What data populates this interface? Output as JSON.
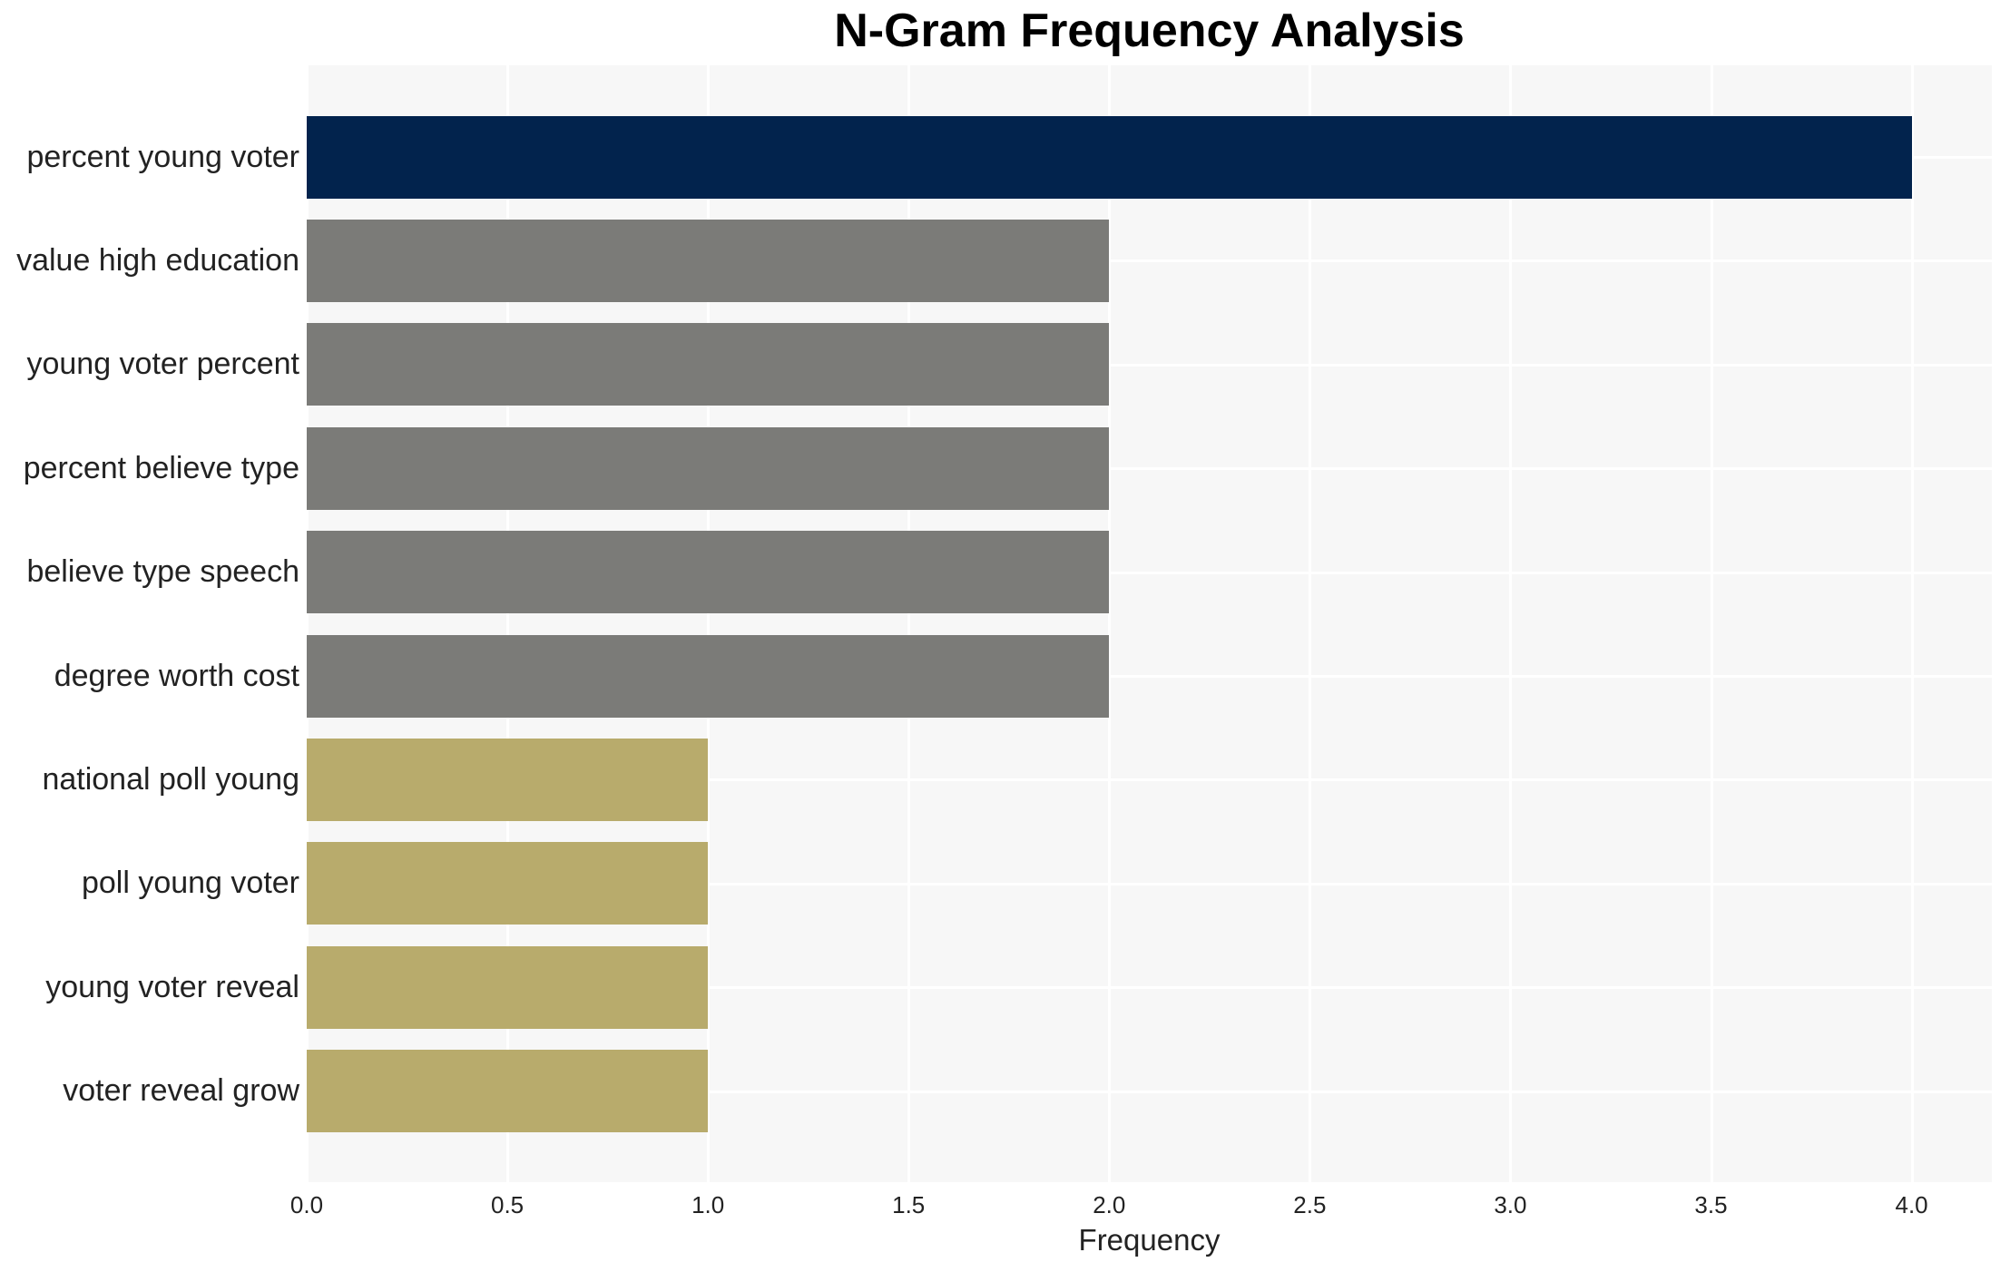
{
  "chart_data": {
    "type": "bar",
    "orientation": "horizontal",
    "title": "N-Gram Frequency Analysis",
    "xlabel": "Frequency",
    "ylabel": "",
    "categories": [
      "percent young voter",
      "value high education",
      "young voter percent",
      "percent believe type",
      "believe type speech",
      "degree worth cost",
      "national poll young",
      "poll young voter",
      "young voter reveal",
      "voter reveal grow"
    ],
    "values": [
      4,
      2,
      2,
      2,
      2,
      2,
      1,
      1,
      1,
      1
    ],
    "bar_colors": [
      "#02234d",
      "#7b7b78",
      "#7b7b78",
      "#7b7b78",
      "#7b7b78",
      "#7b7b78",
      "#b8ab6c",
      "#b8ab6c",
      "#b8ab6c",
      "#b8ab6c"
    ],
    "xlim": [
      0,
      4.2
    ],
    "xtick_labels": [
      "0.0",
      "0.5",
      "1.0",
      "1.5",
      "2.0",
      "2.5",
      "3.0",
      "3.5",
      "4.0"
    ],
    "grid": "on",
    "legend": "none",
    "colors": {
      "figure_background": "#ffffff",
      "plot_background": "#f7f7f7",
      "gridline": "#ffffff",
      "text": "#222222",
      "title_text": "#000000"
    }
  }
}
